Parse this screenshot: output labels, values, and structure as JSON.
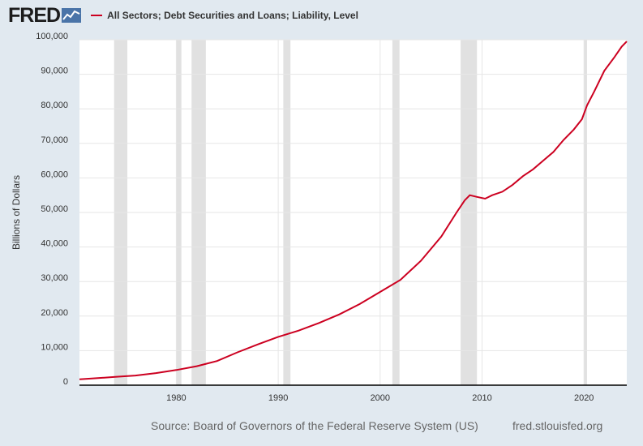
{
  "header": {
    "logo_text": "FRED",
    "series_title": "All Sectors; Debt Securities and Loans; Liability, Level"
  },
  "footer": {
    "source": "Source: Board of Governors of the Federal Reserve System (US)",
    "url": "fred.stlouisfed.org"
  },
  "colors": {
    "background": "#e1e9f0",
    "plot_background": "#ffffff",
    "line": "#cc0020",
    "recession": "#e1e1e1",
    "gridline": "#e6e6e6"
  },
  "chart_data": {
    "type": "line",
    "series": [
      {
        "name": "All Sectors; Debt Securities and Loans; Liability, Level",
        "points": [
          [
            1970.5,
            1700
          ],
          [
            1972,
            2000
          ],
          [
            1974,
            2400
          ],
          [
            1976,
            2800
          ],
          [
            1978,
            3500
          ],
          [
            1980,
            4400
          ],
          [
            1982,
            5500
          ],
          [
            1984,
            7000
          ],
          [
            1986,
            9500
          ],
          [
            1988,
            11800
          ],
          [
            1990,
            14000
          ],
          [
            1992,
            15800
          ],
          [
            1994,
            18000
          ],
          [
            1996,
            20500
          ],
          [
            1998,
            23500
          ],
          [
            2000,
            27000
          ],
          [
            2002,
            30500
          ],
          [
            2004,
            36000
          ],
          [
            2006,
            43000
          ],
          [
            2007.5,
            50000
          ],
          [
            2008.3,
            53500
          ],
          [
            2008.8,
            55000
          ],
          [
            2009.5,
            54500
          ],
          [
            2010.3,
            54000
          ],
          [
            2011,
            55000
          ],
          [
            2012,
            56000
          ],
          [
            2013,
            58000
          ],
          [
            2014,
            60500
          ],
          [
            2015,
            62500
          ],
          [
            2016,
            65000
          ],
          [
            2017,
            67500
          ],
          [
            2018,
            71000
          ],
          [
            2019,
            74000
          ],
          [
            2019.8,
            77000
          ],
          [
            2020.3,
            81000
          ],
          [
            2021,
            85000
          ],
          [
            2022,
            91000
          ],
          [
            2023,
            95000
          ],
          [
            2023.7,
            98000
          ],
          [
            2024.2,
            99500
          ]
        ]
      }
    ],
    "recessions": [
      [
        1973.9,
        1975.2
      ],
      [
        1980.0,
        1980.5
      ],
      [
        1981.5,
        1982.9
      ],
      [
        1990.5,
        1991.2
      ],
      [
        2001.2,
        2001.9
      ],
      [
        2007.9,
        2009.5
      ],
      [
        2020.0,
        2020.3
      ]
    ],
    "x_ticks": [
      "1980",
      "1990",
      "2000",
      "2010",
      "2020"
    ],
    "y_ticks": [
      "0",
      "10,000",
      "20,000",
      "30,000",
      "40,000",
      "50,000",
      "60,000",
      "70,000",
      "80,000",
      "90,000",
      "100,000"
    ],
    "ylabel": "Billions of Dollars",
    "xlim": [
      1970.5,
      2024.2
    ],
    "ylim": [
      0,
      100000
    ],
    "grid": true,
    "legend": "top-left"
  }
}
